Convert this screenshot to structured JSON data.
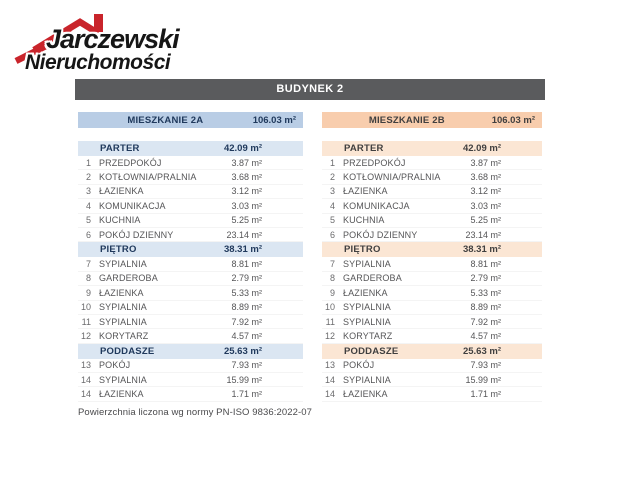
{
  "logo": {
    "line1": "Jarczewski",
    "line2": "Nieruchomości"
  },
  "building_header": "BUDYNEK 2",
  "unit_label": "m²",
  "footer_note": "Powierzchnia liczona wg normy PN-ISO 9836:2022-07",
  "colors": {
    "header_bar_gray": "#5a5b5d",
    "apartment_a_header": "#b9cde5",
    "apartment_a_section": "#dbe6f2",
    "apartment_a_text": "#20395c",
    "apartment_b_header": "#f8cdad",
    "apartment_b_section": "#fbe6d4",
    "apartment_b_text": "#403f3f",
    "logo_red": "#c9242b"
  },
  "apartments": [
    {
      "name": "MIESZKANIE 2A",
      "total_area": "106.03",
      "theme": "blue",
      "sections": [
        {
          "label": "PARTER",
          "area": "42.09",
          "rooms": [
            {
              "no": "1",
              "name": "PRZEDPOKÓJ",
              "area": "3.87"
            },
            {
              "no": "2",
              "name": "KOTŁOWNIA/PRALNIA",
              "area": "3.68"
            },
            {
              "no": "3",
              "name": "ŁAZIENKA",
              "area": "3.12"
            },
            {
              "no": "4",
              "name": "KOMUNIKACJA",
              "area": "3.03"
            },
            {
              "no": "5",
              "name": "KUCHNIA",
              "area": "5.25"
            },
            {
              "no": "6",
              "name": "POKÓJ DZIENNY",
              "area": "23.14"
            }
          ]
        },
        {
          "label": "PIĘTRO",
          "area": "38.31",
          "rooms": [
            {
              "no": "7",
              "name": "SYPIALNIA",
              "area": "8.81"
            },
            {
              "no": "8",
              "name": "GARDEROBA",
              "area": "2.79"
            },
            {
              "no": "9",
              "name": "ŁAZIENKA",
              "area": "5.33"
            },
            {
              "no": "10",
              "name": "SYPIALNIA",
              "area": "8.89"
            },
            {
              "no": "11",
              "name": "SYPIALNIA",
              "area": "7.92"
            },
            {
              "no": "12",
              "name": "KORYTARZ",
              "area": "4.57"
            }
          ]
        },
        {
          "label": "PODDASZE",
          "area": "25.63",
          "rooms": [
            {
              "no": "13",
              "name": "POKÓJ",
              "area": "7.93"
            },
            {
              "no": "14",
              "name": "SYPIALNIA",
              "area": "15.99"
            },
            {
              "no": "14",
              "name": "ŁAZIENKA",
              "area": "1.71"
            }
          ]
        }
      ]
    },
    {
      "name": "MIESZKANIE 2B",
      "total_area": "106.03",
      "theme": "peach",
      "sections": [
        {
          "label": "PARTER",
          "area": "42.09",
          "rooms": [
            {
              "no": "1",
              "name": "PRZEDPOKÓJ",
              "area": "3.87"
            },
            {
              "no": "2",
              "name": "KOTŁOWNIA/PRALNIA",
              "area": "3.68"
            },
            {
              "no": "3",
              "name": "ŁAZIENKA",
              "area": "3.12"
            },
            {
              "no": "4",
              "name": "KOMUNIKACJA",
              "area": "3.03"
            },
            {
              "no": "5",
              "name": "KUCHNIA",
              "area": "5.25"
            },
            {
              "no": "6",
              "name": "POKÓJ DZIENNY",
              "area": "23.14"
            }
          ]
        },
        {
          "label": "PIĘTRO",
          "area": "38.31",
          "rooms": [
            {
              "no": "7",
              "name": "SYPIALNIA",
              "area": "8.81"
            },
            {
              "no": "8",
              "name": "GARDEROBA",
              "area": "2.79"
            },
            {
              "no": "9",
              "name": "ŁAZIENKA",
              "area": "5.33"
            },
            {
              "no": "10",
              "name": "SYPIALNIA",
              "area": "8.89"
            },
            {
              "no": "11",
              "name": "SYPIALNIA",
              "area": "7.92"
            },
            {
              "no": "12",
              "name": "KORYTARZ",
              "area": "4.57"
            }
          ]
        },
        {
          "label": "PODDASZE",
          "area": "25.63",
          "rooms": [
            {
              "no": "13",
              "name": "POKÓJ",
              "area": "7.93"
            },
            {
              "no": "14",
              "name": "SYPIALNIA",
              "area": "15.99"
            },
            {
              "no": "14",
              "name": "ŁAZIENKA",
              "area": "1.71"
            }
          ]
        }
      ]
    }
  ]
}
